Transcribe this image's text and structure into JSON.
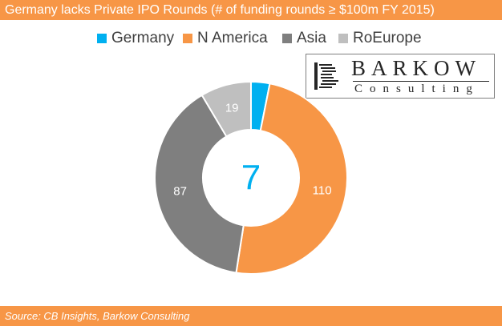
{
  "header": {
    "title": "Germany lacks Private IPO Rounds (# of funding rounds ≥ $100m FY 2015)"
  },
  "footer": {
    "source": "Source: CB Insights, Barkow Consulting"
  },
  "logo": {
    "name": "BARKOW",
    "subtitle": "Consulting",
    "icon": "barkow-logo-mark"
  },
  "colors": {
    "accent": "#f79646",
    "germany": "#00b0f0",
    "n_america": "#f79646",
    "asia": "#7f7f7f",
    "roeurope": "#bfbfbf"
  },
  "chart_data": {
    "type": "pie",
    "variant": "donut",
    "title": "Germany lacks Private IPO Rounds (# of funding rounds ≥ $100m FY 2015)",
    "legend_position": "top",
    "categories": [
      "Germany",
      "N America",
      "Asia",
      "RoEurope"
    ],
    "values": [
      7,
      110,
      87,
      19
    ],
    "colors": [
      "#00b0f0",
      "#f79646",
      "#7f7f7f",
      "#bfbfbf"
    ],
    "data_labels": [
      "",
      "110",
      "87",
      "19"
    ],
    "center_label": "7",
    "center_label_color": "#00b0f0"
  }
}
